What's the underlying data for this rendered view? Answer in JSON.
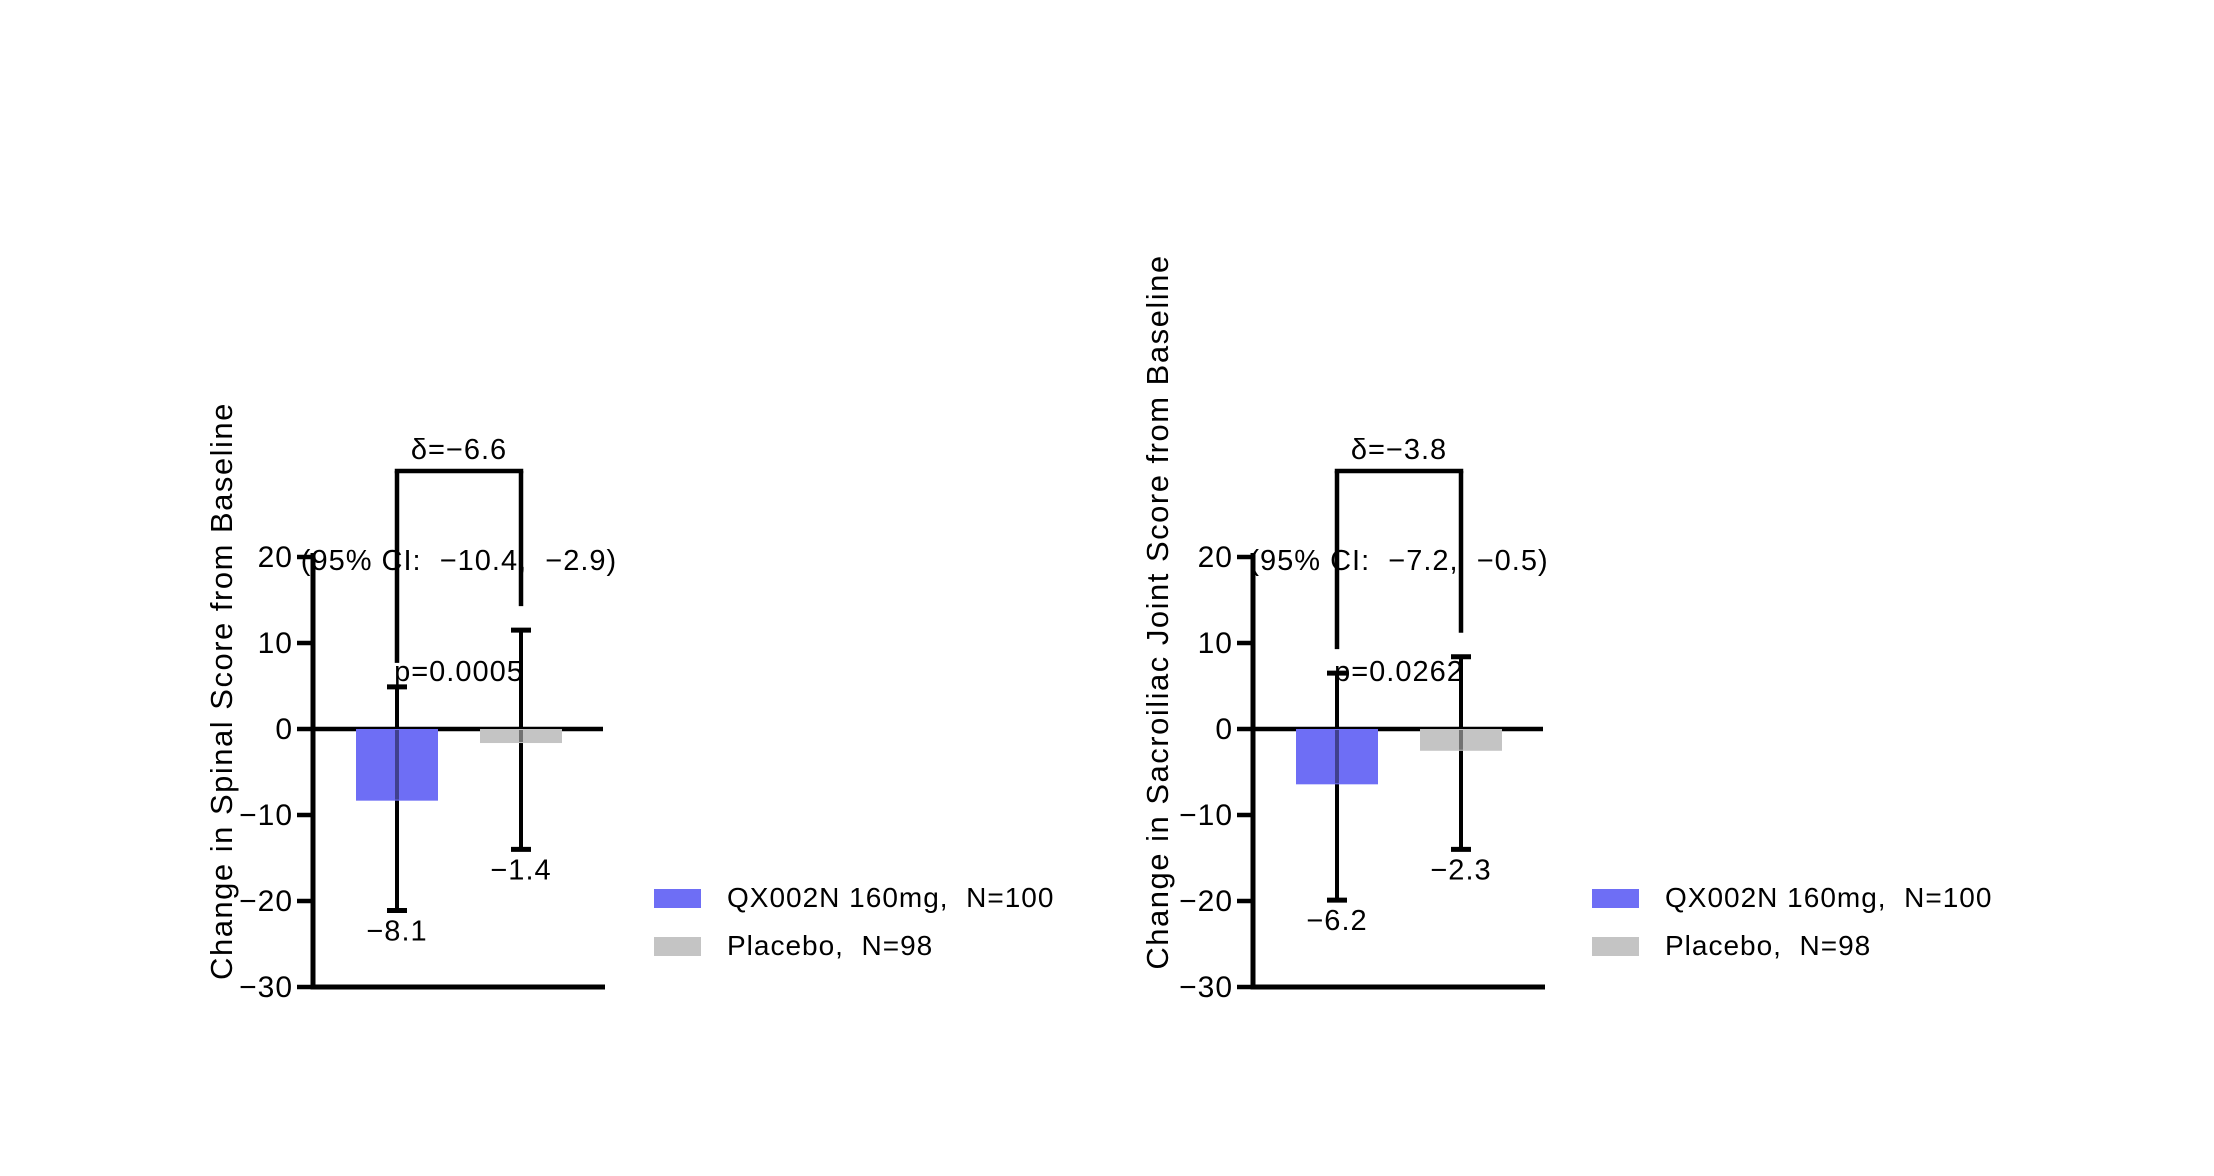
{
  "figure": {
    "background": "#ffffff",
    "colors": {
      "treatment": "#6E6EF5",
      "placebo": "#C4C4C4",
      "line": "#000000",
      "text": "#000000"
    }
  },
  "chart_data": [
    {
      "type": "bar",
      "id": "spinal",
      "title": "",
      "xlabel": "",
      "ylabel": "Change in Spinal Score from Baseline",
      "ylim": [
        -30,
        20.5
      ],
      "grid": false,
      "yticks": [
        20,
        10,
        0,
        -10,
        -20,
        -30
      ],
      "ytick_labels": [
        "20",
        "10",
        "0",
        "−10",
        "−20",
        "−30"
      ],
      "categories": [
        "QX002N 160mg",
        "Placebo"
      ],
      "series": [
        {
          "name": "QX002N 160mg,  N=100",
          "group": "treatment",
          "value": -8.1,
          "value_label": "−8.1",
          "ci_upper": 4.9,
          "ci_lower": -21.1
        },
        {
          "name": "Placebo,  N=98",
          "group": "placebo",
          "value": -1.4,
          "value_label": "−1.4",
          "ci_upper": 11.5,
          "ci_lower": -14.0
        }
      ],
      "comparison": {
        "delta": "δ=−6.6",
        "ci": "(95% CI:  −10.4,  −2.9)",
        "p": "p=0.0005"
      },
      "legend": [
        {
          "label": "QX002N 160mg,  N=100",
          "group": "treatment"
        },
        {
          "label": "Placebo,  N=98",
          "group": "placebo"
        }
      ],
      "legend_position": "right-lower"
    },
    {
      "type": "bar",
      "id": "sacroiliac",
      "title": "",
      "xlabel": "",
      "ylabel": "Change in Sacroiliac Joint Score from Baseline",
      "ylim": [
        -30,
        20.5
      ],
      "grid": false,
      "yticks": [
        20,
        10,
        0,
        -10,
        -20,
        -30
      ],
      "ytick_labels": [
        "20",
        "10",
        "0",
        "−10",
        "−20",
        "−30"
      ],
      "categories": [
        "QX002N 160mg",
        "Placebo"
      ],
      "series": [
        {
          "name": "QX002N 160mg,  N=100",
          "group": "treatment",
          "value": -6.2,
          "value_label": "−6.2",
          "ci_upper": 6.5,
          "ci_lower": -19.9
        },
        {
          "name": "Placebo,  N=98",
          "group": "placebo",
          "value": -2.3,
          "value_label": "−2.3",
          "ci_upper": 8.4,
          "ci_lower": -14.0
        }
      ],
      "comparison": {
        "delta": "δ=−3.8",
        "ci": "(95% CI:  −7.2,  −0.5)",
        "p": "p=0.0262"
      },
      "legend": [
        {
          "label": "QX002N 160mg,  N=100",
          "group": "treatment"
        },
        {
          "label": "Placebo,  N=98",
          "group": "placebo"
        }
      ],
      "legend_position": "right-lower"
    }
  ]
}
